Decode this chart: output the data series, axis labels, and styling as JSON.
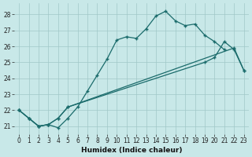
{
  "xlabel": "Humidex (Indice chaleur)",
  "bg_color": "#c8e8e8",
  "grid_color": "#a0c8c8",
  "line_color": "#1a6b6b",
  "xlim": [
    -0.5,
    23.5
  ],
  "ylim": [
    20.5,
    28.7
  ],
  "yticks": [
    21,
    22,
    23,
    24,
    25,
    26,
    27,
    28
  ],
  "xticks": [
    0,
    1,
    2,
    3,
    4,
    5,
    6,
    7,
    8,
    9,
    10,
    11,
    12,
    13,
    14,
    15,
    16,
    17,
    18,
    19,
    20,
    21,
    22,
    23
  ],
  "line1_x": [
    0,
    1,
    2,
    3,
    4,
    5,
    6,
    7,
    8,
    9,
    10,
    11,
    12,
    13,
    14,
    15,
    16,
    17,
    18,
    19,
    20,
    21
  ],
  "line1_y": [
    22.0,
    21.5,
    21.0,
    21.1,
    20.9,
    21.5,
    22.2,
    23.2,
    24.2,
    25.2,
    26.4,
    26.6,
    26.5,
    27.1,
    27.9,
    28.2,
    27.6,
    27.3,
    27.4,
    26.7,
    26.3,
    25.8
  ],
  "line2_x": [
    0,
    1,
    2,
    3,
    4,
    5,
    22,
    23
  ],
  "line2_y": [
    22.0,
    21.5,
    21.0,
    21.1,
    21.5,
    22.2,
    25.9,
    24.5
  ],
  "line3_x": [
    0,
    1,
    2,
    3,
    4,
    5,
    19,
    20,
    21,
    22,
    23
  ],
  "line3_y": [
    22.0,
    21.5,
    21.0,
    21.1,
    21.5,
    22.2,
    25.0,
    25.3,
    26.3,
    25.8,
    24.5
  ]
}
